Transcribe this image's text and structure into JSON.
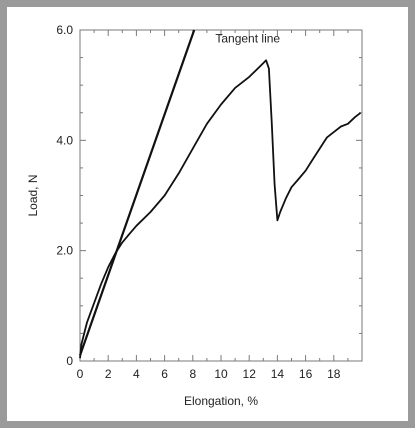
{
  "chart_data": {
    "type": "line",
    "xlabel": "Elongation, %",
    "ylabel": "Load, N",
    "xlim": [
      0,
      20
    ],
    "ylim": [
      0,
      6
    ],
    "x_ticks": [
      0,
      2,
      4,
      6,
      8,
      10,
      12,
      14,
      16,
      18
    ],
    "x_tick_labels": [
      "0",
      "2",
      "4",
      "6",
      "8",
      "10",
      "12",
      "14",
      "16",
      "18"
    ],
    "y_ticks": [
      0,
      2,
      4,
      6
    ],
    "y_tick_labels": [
      "0",
      "2.0",
      "4.0",
      "6.0"
    ],
    "annotations": [
      {
        "text": "Tangent line",
        "x": 9.6,
        "y": 5.85
      }
    ],
    "series": [
      {
        "name": "",
        "style": "tangent",
        "x": [
          0,
          8.1
        ],
        "y": [
          0.1,
          6.0
        ]
      },
      {
        "name": "",
        "style": "curve",
        "x": [
          0,
          0.1,
          0.3,
          0.5,
          1.0,
          1.5,
          2.0,
          2.5,
          3.0,
          3.5,
          4.0,
          5.0,
          6.0,
          7.0,
          8.0,
          9.0,
          10.0,
          11.0,
          12.0,
          12.6,
          13.0,
          13.2,
          13.4,
          13.6,
          13.8,
          14.0,
          14.2,
          14.6,
          15.0,
          15.5,
          16.0,
          16.5,
          17.0,
          17.5,
          18.0,
          18.5,
          19.0,
          19.5,
          19.9
        ],
        "y": [
          0.05,
          0.3,
          0.5,
          0.7,
          1.05,
          1.4,
          1.7,
          1.95,
          2.15,
          2.3,
          2.45,
          2.7,
          3.0,
          3.4,
          3.85,
          4.3,
          4.65,
          4.95,
          5.15,
          5.3,
          5.4,
          5.45,
          5.3,
          4.3,
          3.2,
          2.55,
          2.7,
          2.95,
          3.15,
          3.3,
          3.45,
          3.65,
          3.85,
          4.05,
          4.15,
          4.25,
          4.3,
          4.42,
          4.5
        ]
      }
    ]
  }
}
